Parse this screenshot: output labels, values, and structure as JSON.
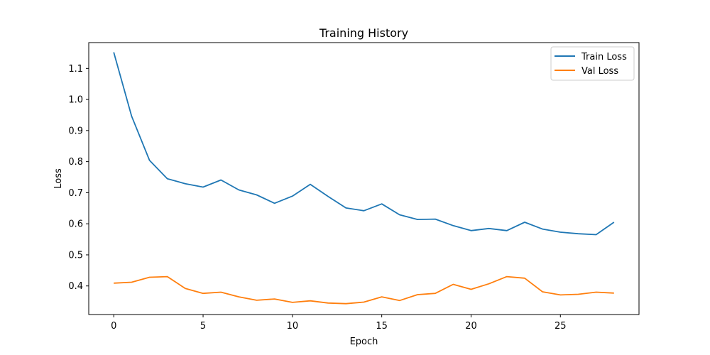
{
  "chart_data": {
    "type": "line",
    "title": "Training History",
    "xlabel": "Epoch",
    "ylabel": "Loss",
    "xlim": [
      -1.4,
      29.4
    ],
    "ylim": [
      0.308,
      1.183
    ],
    "xticks": [
      0,
      5,
      10,
      15,
      20,
      25
    ],
    "yticks": [
      0.4,
      0.5,
      0.6,
      0.7,
      0.8,
      0.9,
      1.0,
      1.1
    ],
    "grid": false,
    "legend_position": "top-right",
    "x": [
      0,
      1,
      2,
      3,
      4,
      5,
      6,
      7,
      8,
      9,
      10,
      11,
      12,
      13,
      14,
      15,
      16,
      17,
      18,
      19,
      20,
      21,
      22,
      23,
      24,
      25,
      26,
      27,
      28
    ],
    "series": [
      {
        "name": "Train Loss",
        "color": "#1f77b4",
        "values": [
          1.152,
          0.946,
          0.804,
          0.745,
          0.729,
          0.718,
          0.741,
          0.709,
          0.693,
          0.666,
          0.689,
          0.727,
          0.688,
          0.651,
          0.642,
          0.664,
          0.629,
          0.614,
          0.615,
          0.594,
          0.578,
          0.585,
          0.578,
          0.605,
          0.583,
          0.573,
          0.568,
          0.565,
          0.605
        ]
      },
      {
        "name": "Val Loss",
        "color": "#ff7f0e",
        "values": [
          0.409,
          0.412,
          0.428,
          0.43,
          0.392,
          0.376,
          0.38,
          0.365,
          0.354,
          0.358,
          0.347,
          0.352,
          0.345,
          0.343,
          0.348,
          0.365,
          0.353,
          0.372,
          0.376,
          0.405,
          0.389,
          0.407,
          0.43,
          0.425,
          0.381,
          0.371,
          0.373,
          0.38,
          0.377
        ]
      }
    ]
  }
}
